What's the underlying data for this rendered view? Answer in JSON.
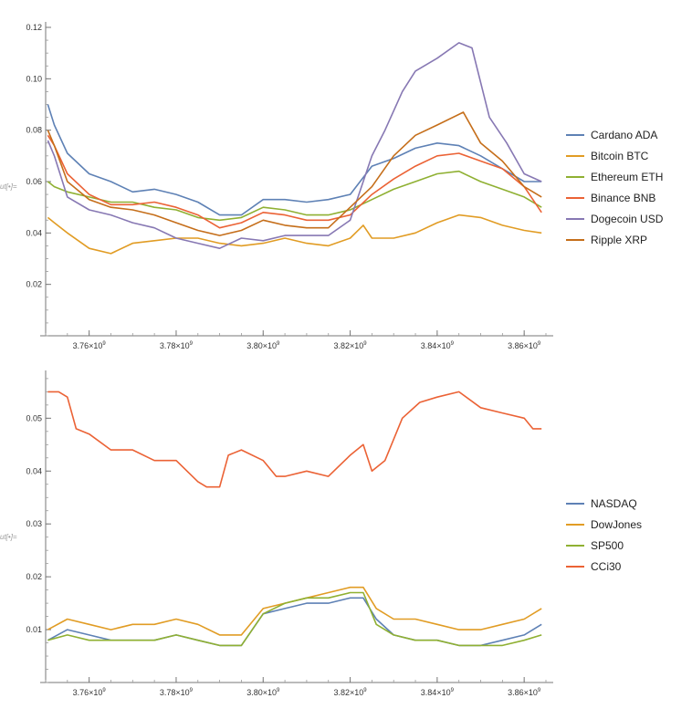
{
  "out_label": "ut[•]=",
  "chart_data": [
    {
      "type": "line",
      "title": "",
      "xlabel": "",
      "ylabel": "",
      "xlim": [
        3750000000.0,
        3865000000.0
      ],
      "ylim": [
        0,
        0.12
      ],
      "x_ticks": [
        3760000000.0,
        3780000000.0,
        3800000000.0,
        3820000000.0,
        3840000000.0,
        3860000000.0
      ],
      "x_tick_labels": [
        {
          "mant": "3.76×10",
          "exp": "9"
        },
        {
          "mant": "3.78×10",
          "exp": "9"
        },
        {
          "mant": "3.80×10",
          "exp": "9"
        },
        {
          "mant": "3.82×10",
          "exp": "9"
        },
        {
          "mant": "3.84×10",
          "exp": "9"
        },
        {
          "mant": "3.86×10",
          "exp": "9"
        }
      ],
      "y_ticks": [
        0.02,
        0.04,
        0.06,
        0.08,
        0.1,
        0.12
      ],
      "y_tick_labels": [
        "0.02",
        "0.04",
        "0.06",
        "0.08",
        "0.10",
        "0.12"
      ],
      "legend_position": "right",
      "grid": false,
      "series": [
        {
          "name": "Cardano ADA",
          "color": "#5e81b5",
          "x": [
            3750500000.0,
            3752000000.0,
            3755000000.0,
            3760000000.0,
            3765000000.0,
            3770000000.0,
            3775000000.0,
            3780000000.0,
            3785000000.0,
            3790000000.0,
            3795000000.0,
            3800000000.0,
            3805000000.0,
            3810000000.0,
            3815000000.0,
            3820000000.0,
            3825000000.0,
            3830000000.0,
            3835000000.0,
            3840000000.0,
            3845000000.0,
            3850000000.0,
            3855000000.0,
            3860000000.0,
            3864000000.0
          ],
          "values": [
            0.09,
            0.082,
            0.071,
            0.063,
            0.06,
            0.056,
            0.057,
            0.055,
            0.052,
            0.047,
            0.047,
            0.053,
            0.053,
            0.052,
            0.053,
            0.055,
            0.066,
            0.069,
            0.073,
            0.075,
            0.074,
            0.07,
            0.065,
            0.06,
            0.06
          ]
        },
        {
          "name": "Bitcoin BTC",
          "color": "#e19c24",
          "x": [
            3750500000.0,
            3752000000.0,
            3755000000.0,
            3760000000.0,
            3765000000.0,
            3770000000.0,
            3775000000.0,
            3780000000.0,
            3785000000.0,
            3790000000.0,
            3795000000.0,
            3800000000.0,
            3805000000.0,
            3810000000.0,
            3815000000.0,
            3820000000.0,
            3823000000.0,
            3825000000.0,
            3830000000.0,
            3835000000.0,
            3840000000.0,
            3845000000.0,
            3850000000.0,
            3855000000.0,
            3860000000.0,
            3864000000.0
          ],
          "values": [
            0.046,
            0.044,
            0.04,
            0.034,
            0.032,
            0.036,
            0.037,
            0.038,
            0.038,
            0.036,
            0.035,
            0.036,
            0.038,
            0.036,
            0.035,
            0.038,
            0.043,
            0.038,
            0.038,
            0.04,
            0.044,
            0.047,
            0.046,
            0.043,
            0.041,
            0.04
          ]
        },
        {
          "name": "Ethereum ETH",
          "color": "#8fb032",
          "x": [
            3750500000.0,
            3752000000.0,
            3755000000.0,
            3760000000.0,
            3765000000.0,
            3770000000.0,
            3775000000.0,
            3780000000.0,
            3785000000.0,
            3790000000.0,
            3795000000.0,
            3800000000.0,
            3805000000.0,
            3810000000.0,
            3815000000.0,
            3820000000.0,
            3825000000.0,
            3830000000.0,
            3835000000.0,
            3840000000.0,
            3845000000.0,
            3850000000.0,
            3855000000.0,
            3860000000.0,
            3864000000.0
          ],
          "values": [
            0.06,
            0.058,
            0.056,
            0.054,
            0.052,
            0.052,
            0.05,
            0.049,
            0.046,
            0.045,
            0.046,
            0.05,
            0.049,
            0.047,
            0.047,
            0.049,
            0.053,
            0.057,
            0.06,
            0.063,
            0.064,
            0.06,
            0.057,
            0.054,
            0.05
          ]
        },
        {
          "name": "Binance BNB",
          "color": "#eb6235",
          "x": [
            3750500000.0,
            3752000000.0,
            3755000000.0,
            3760000000.0,
            3765000000.0,
            3770000000.0,
            3775000000.0,
            3780000000.0,
            3785000000.0,
            3790000000.0,
            3795000000.0,
            3800000000.0,
            3805000000.0,
            3810000000.0,
            3815000000.0,
            3820000000.0,
            3825000000.0,
            3830000000.0,
            3835000000.0,
            3840000000.0,
            3845000000.0,
            3850000000.0,
            3855000000.0,
            3860000000.0,
            3864000000.0
          ],
          "values": [
            0.078,
            0.074,
            0.063,
            0.055,
            0.051,
            0.051,
            0.052,
            0.05,
            0.047,
            0.042,
            0.044,
            0.048,
            0.047,
            0.045,
            0.045,
            0.047,
            0.055,
            0.061,
            0.066,
            0.07,
            0.071,
            0.068,
            0.065,
            0.058,
            0.048
          ]
        },
        {
          "name": "Dogecoin USD",
          "color": "#8778b3",
          "x": [
            3750500000.0,
            3752000000.0,
            3755000000.0,
            3760000000.0,
            3765000000.0,
            3770000000.0,
            3775000000.0,
            3780000000.0,
            3785000000.0,
            3790000000.0,
            3795000000.0,
            3800000000.0,
            3805000000.0,
            3810000000.0,
            3815000000.0,
            3820000000.0,
            3825000000.0,
            3828000000.0,
            3832000000.0,
            3835000000.0,
            3840000000.0,
            3845000000.0,
            3848000000.0,
            3852000000.0,
            3856000000.0,
            3860000000.0,
            3864000000.0
          ],
          "values": [
            0.076,
            0.07,
            0.054,
            0.049,
            0.047,
            0.044,
            0.042,
            0.038,
            0.036,
            0.034,
            0.038,
            0.037,
            0.039,
            0.039,
            0.039,
            0.045,
            0.07,
            0.08,
            0.095,
            0.103,
            0.108,
            0.114,
            0.112,
            0.085,
            0.075,
            0.063,
            0.06
          ]
        },
        {
          "name": "Ripple XRP",
          "color": "#c56e1a",
          "x": [
            3750500000.0,
            3752000000.0,
            3755000000.0,
            3760000000.0,
            3765000000.0,
            3770000000.0,
            3775000000.0,
            3780000000.0,
            3785000000.0,
            3790000000.0,
            3795000000.0,
            3800000000.0,
            3805000000.0,
            3810000000.0,
            3815000000.0,
            3820000000.0,
            3825000000.0,
            3830000000.0,
            3835000000.0,
            3840000000.0,
            3846000000.0,
            3850000000.0,
            3855000000.0,
            3860000000.0,
            3864000000.0
          ],
          "values": [
            0.08,
            0.074,
            0.06,
            0.053,
            0.05,
            0.049,
            0.047,
            0.044,
            0.041,
            0.039,
            0.041,
            0.045,
            0.043,
            0.042,
            0.042,
            0.05,
            0.058,
            0.07,
            0.078,
            0.082,
            0.087,
            0.075,
            0.068,
            0.058,
            0.054
          ]
        }
      ]
    },
    {
      "type": "line",
      "title": "",
      "xlabel": "",
      "ylabel": "",
      "xlim": [
        3750000000.0,
        3865000000.0
      ],
      "ylim": [
        0,
        0.058
      ],
      "x_ticks": [
        3760000000.0,
        3780000000.0,
        3800000000.0,
        3820000000.0,
        3840000000.0,
        3860000000.0
      ],
      "x_tick_labels": [
        {
          "mant": "3.76×10",
          "exp": "9"
        },
        {
          "mant": "3.78×10",
          "exp": "9"
        },
        {
          "mant": "3.80×10",
          "exp": "9"
        },
        {
          "mant": "3.82×10",
          "exp": "9"
        },
        {
          "mant": "3.84×10",
          "exp": "9"
        },
        {
          "mant": "3.86×10",
          "exp": "9"
        }
      ],
      "y_ticks": [
        0.01,
        0.02,
        0.03,
        0.04,
        0.05
      ],
      "y_tick_labels": [
        "0.01",
        "0.02",
        "0.03",
        "0.04",
        "0.05"
      ],
      "legend_position": "right",
      "grid": false,
      "series": [
        {
          "name": "NASDAQ",
          "color": "#5e81b5",
          "x": [
            3750500000.0,
            3755000000.0,
            3760000000.0,
            3765000000.0,
            3770000000.0,
            3775000000.0,
            3780000000.0,
            3785000000.0,
            3790000000.0,
            3795000000.0,
            3800000000.0,
            3805000000.0,
            3810000000.0,
            3815000000.0,
            3820000000.0,
            3823000000.0,
            3826000000.0,
            3830000000.0,
            3835000000.0,
            3840000000.0,
            3845000000.0,
            3850000000.0,
            3855000000.0,
            3860000000.0,
            3864000000.0
          ],
          "values": [
            0.008,
            0.01,
            0.009,
            0.008,
            0.008,
            0.008,
            0.009,
            0.008,
            0.007,
            0.007,
            0.013,
            0.014,
            0.015,
            0.015,
            0.016,
            0.016,
            0.012,
            0.009,
            0.008,
            0.008,
            0.007,
            0.007,
            0.008,
            0.009,
            0.011
          ]
        },
        {
          "name": "DowJones",
          "color": "#e19c24",
          "x": [
            3750500000.0,
            3755000000.0,
            3760000000.0,
            3765000000.0,
            3770000000.0,
            3775000000.0,
            3780000000.0,
            3785000000.0,
            3790000000.0,
            3795000000.0,
            3800000000.0,
            3805000000.0,
            3810000000.0,
            3815000000.0,
            3820000000.0,
            3823000000.0,
            3826000000.0,
            3830000000.0,
            3835000000.0,
            3840000000.0,
            3845000000.0,
            3850000000.0,
            3855000000.0,
            3860000000.0,
            3864000000.0
          ],
          "values": [
            0.01,
            0.012,
            0.011,
            0.01,
            0.011,
            0.011,
            0.012,
            0.011,
            0.009,
            0.009,
            0.014,
            0.015,
            0.016,
            0.017,
            0.018,
            0.018,
            0.014,
            0.012,
            0.012,
            0.011,
            0.01,
            0.01,
            0.011,
            0.012,
            0.014
          ]
        },
        {
          "name": "SP500",
          "color": "#8fb032",
          "x": [
            3750500000.0,
            3755000000.0,
            3760000000.0,
            3765000000.0,
            3770000000.0,
            3775000000.0,
            3780000000.0,
            3785000000.0,
            3790000000.0,
            3795000000.0,
            3800000000.0,
            3805000000.0,
            3810000000.0,
            3815000000.0,
            3820000000.0,
            3823000000.0,
            3826000000.0,
            3830000000.0,
            3835000000.0,
            3840000000.0,
            3845000000.0,
            3850000000.0,
            3855000000.0,
            3860000000.0,
            3864000000.0
          ],
          "values": [
            0.008,
            0.009,
            0.008,
            0.008,
            0.008,
            0.008,
            0.009,
            0.008,
            0.007,
            0.007,
            0.013,
            0.015,
            0.016,
            0.016,
            0.017,
            0.017,
            0.011,
            0.009,
            0.008,
            0.008,
            0.007,
            0.007,
            0.007,
            0.008,
            0.009
          ]
        },
        {
          "name": "CCi30",
          "color": "#eb6235",
          "x": [
            3750500000.0,
            3753000000.0,
            3755000000.0,
            3757000000.0,
            3760000000.0,
            3765000000.0,
            3770000000.0,
            3775000000.0,
            3780000000.0,
            3785000000.0,
            3787000000.0,
            3790000000.0,
            3792000000.0,
            3795000000.0,
            3800000000.0,
            3803000000.0,
            3805000000.0,
            3810000000.0,
            3815000000.0,
            3820000000.0,
            3823000000.0,
            3825000000.0,
            3828000000.0,
            3832000000.0,
            3836000000.0,
            3840000000.0,
            3845000000.0,
            3850000000.0,
            3855000000.0,
            3860000000.0,
            3862000000.0,
            3864000000.0
          ],
          "values": [
            0.055,
            0.055,
            0.054,
            0.048,
            0.047,
            0.044,
            0.044,
            0.042,
            0.042,
            0.038,
            0.037,
            0.037,
            0.043,
            0.044,
            0.042,
            0.039,
            0.039,
            0.04,
            0.039,
            0.043,
            0.045,
            0.04,
            0.042,
            0.05,
            0.053,
            0.054,
            0.055,
            0.052,
            0.051,
            0.05,
            0.048,
            0.048
          ]
        }
      ]
    }
  ]
}
